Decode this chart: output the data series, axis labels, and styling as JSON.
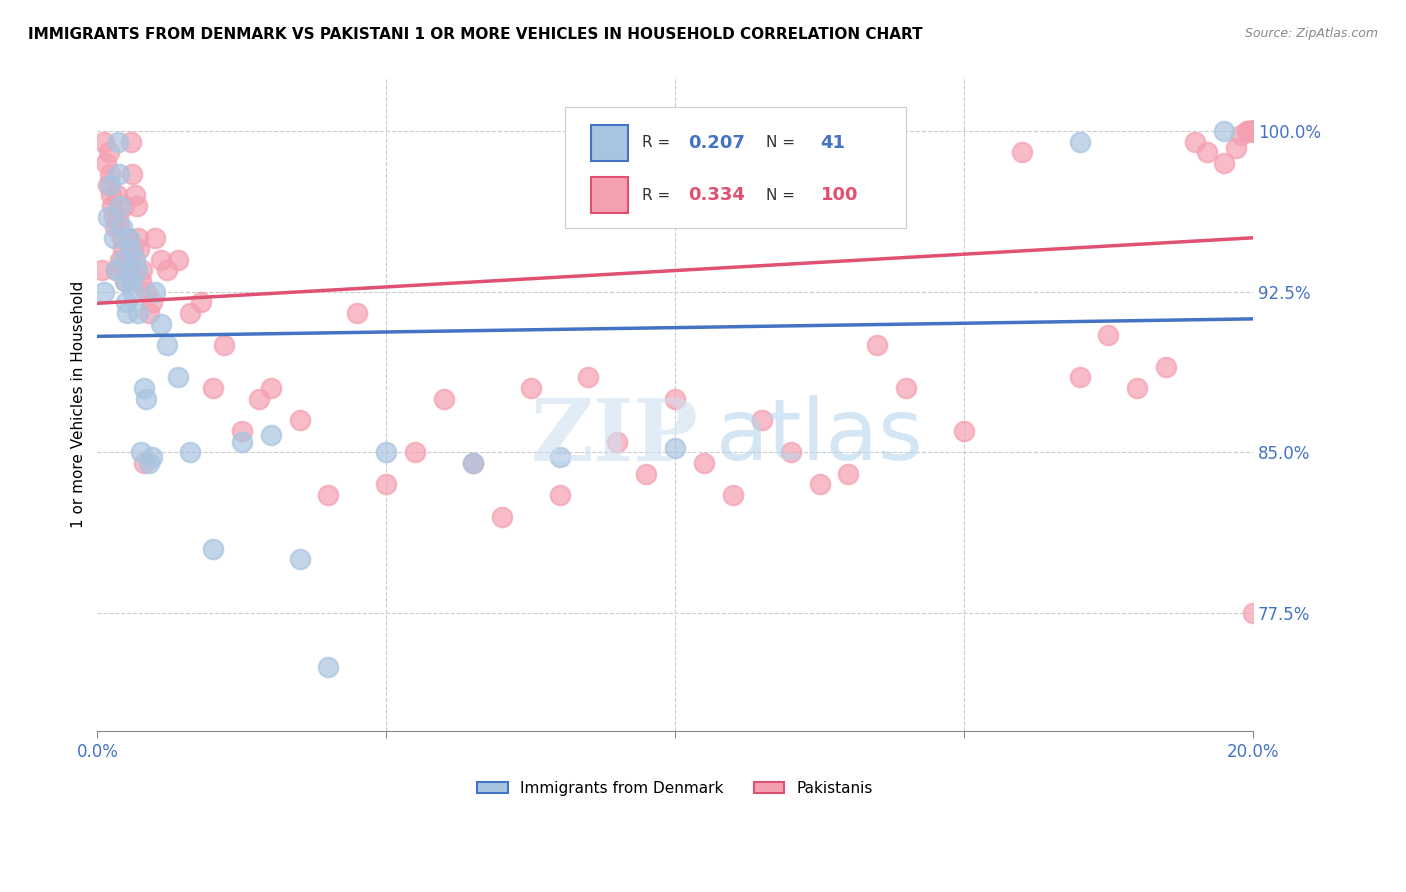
{
  "title": "IMMIGRANTS FROM DENMARK VS PAKISTANI 1 OR MORE VEHICLES IN HOUSEHOLD CORRELATION CHART",
  "source": "Source: ZipAtlas.com",
  "ylabel": "1 or more Vehicles in Household",
  "yticks": [
    77.5,
    85.0,
    92.5,
    100.0
  ],
  "ytick_labels": [
    "77.5%",
    "85.0%",
    "92.5%",
    "100.0%"
  ],
  "xlim": [
    0.0,
    20.0
  ],
  "ylim": [
    72.0,
    102.5
  ],
  "denmark_R": 0.207,
  "denmark_N": 41,
  "pakistan_R": 0.334,
  "pakistan_N": 100,
  "denmark_color": "#a8c4e0",
  "pakistan_color": "#f4a0b0",
  "denmark_line_color": "#4472c4",
  "pakistan_line_color": "#e05070",
  "denmark_x": [
    0.12,
    0.18,
    0.22,
    0.28,
    0.32,
    0.35,
    0.38,
    0.4,
    0.42,
    0.45,
    0.48,
    0.5,
    0.52,
    0.55,
    0.58,
    0.6,
    0.62,
    0.65,
    0.68,
    0.7,
    0.75,
    0.8,
    0.85,
    0.9,
    0.95,
    1.0,
    1.1,
    1.2,
    1.4,
    1.6,
    2.0,
    2.5,
    3.0,
    3.5,
    4.0,
    5.0,
    6.5,
    8.0,
    10.0,
    17.0,
    19.5
  ],
  "denmark_y": [
    92.5,
    96.0,
    97.5,
    95.0,
    93.5,
    99.5,
    98.0,
    96.5,
    95.5,
    94.0,
    93.0,
    92.0,
    91.5,
    95.0,
    94.5,
    93.0,
    92.5,
    94.0,
    93.5,
    91.5,
    85.0,
    88.0,
    87.5,
    84.5,
    84.8,
    92.5,
    91.0,
    90.0,
    88.5,
    85.0,
    80.5,
    85.5,
    85.8,
    80.0,
    75.0,
    85.0,
    84.5,
    84.8,
    85.2,
    99.5,
    100.0
  ],
  "pakistan_x": [
    0.08,
    0.12,
    0.15,
    0.18,
    0.2,
    0.22,
    0.24,
    0.26,
    0.28,
    0.3,
    0.32,
    0.34,
    0.36,
    0.38,
    0.4,
    0.42,
    0.44,
    0.46,
    0.48,
    0.5,
    0.52,
    0.54,
    0.56,
    0.58,
    0.6,
    0.62,
    0.65,
    0.68,
    0.7,
    0.72,
    0.75,
    0.78,
    0.8,
    0.85,
    0.9,
    0.95,
    1.0,
    1.1,
    1.2,
    1.4,
    1.6,
    1.8,
    2.0,
    2.2,
    2.5,
    2.8,
    3.0,
    3.5,
    4.0,
    4.5,
    5.0,
    5.5,
    6.0,
    6.5,
    7.0,
    7.5,
    8.0,
    8.5,
    9.0,
    9.5,
    10.0,
    10.5,
    11.0,
    11.5,
    12.0,
    12.5,
    13.0,
    13.5,
    14.0,
    15.0,
    16.0,
    17.0,
    17.5,
    18.0,
    18.5,
    19.0,
    19.2,
    19.5,
    19.7,
    19.8,
    19.9,
    19.92,
    19.95,
    19.97,
    19.98,
    19.99,
    20.0,
    20.0,
    20.0,
    20.0,
    20.0,
    20.0,
    20.0,
    20.0,
    20.0,
    20.0,
    20.0,
    20.0,
    20.0,
    20.0
  ],
  "pakistan_y": [
    93.5,
    99.5,
    98.5,
    97.5,
    99.0,
    98.0,
    97.0,
    96.5,
    96.0,
    95.5,
    93.5,
    97.0,
    96.0,
    95.5,
    94.0,
    95.0,
    94.5,
    96.5,
    93.0,
    93.5,
    95.0,
    94.0,
    93.5,
    99.5,
    98.0,
    94.5,
    97.0,
    96.5,
    95.0,
    94.5,
    93.0,
    93.5,
    84.5,
    92.5,
    91.5,
    92.0,
    95.0,
    94.0,
    93.5,
    94.0,
    91.5,
    92.0,
    88.0,
    90.0,
    86.0,
    87.5,
    88.0,
    86.5,
    83.0,
    91.5,
    83.5,
    85.0,
    87.5,
    84.5,
    82.0,
    88.0,
    83.0,
    88.5,
    85.5,
    84.0,
    87.5,
    84.5,
    83.0,
    86.5,
    85.0,
    83.5,
    84.0,
    90.0,
    88.0,
    86.0,
    99.0,
    88.5,
    90.5,
    88.0,
    89.0,
    99.5,
    99.0,
    98.5,
    99.2,
    99.8,
    100.0,
    100.0,
    100.0,
    100.0,
    100.0,
    100.0,
    100.0,
    100.0,
    100.0,
    100.0,
    100.0,
    100.0,
    100.0,
    100.0,
    100.0,
    100.0,
    100.0,
    100.0,
    100.0,
    77.5
  ]
}
